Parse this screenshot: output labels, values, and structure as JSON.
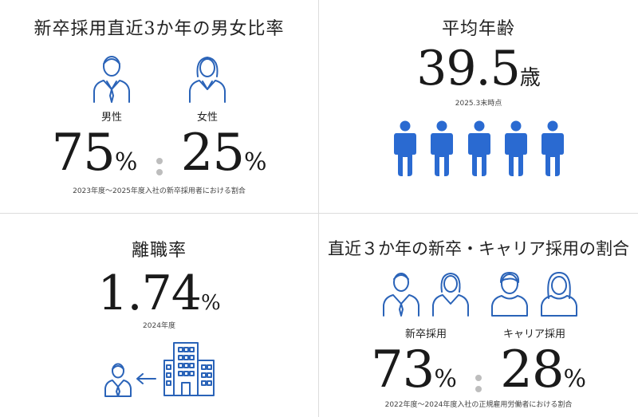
{
  "gender": {
    "title": "新卒採用直近3か年の男女比率",
    "male_label": "男性",
    "female_label": "女性",
    "male_value": "75",
    "female_value": "25",
    "unit": "%",
    "note": "2023年度〜2025年度入社の新卒採用者における割合"
  },
  "age": {
    "title": "平均年齢",
    "value": "39.5",
    "unit": "歳",
    "note": "2025.3末時点"
  },
  "turnover": {
    "title": "離職率",
    "value": "1.74",
    "unit": "%",
    "note": "2024年度"
  },
  "ratio": {
    "title": "直近３か年の新卒・キャリア採用の割合",
    "new_grad_label": "新卒採用",
    "career_label": "キャリア採用",
    "new_grad_value": "73",
    "career_value": "28",
    "unit": "%",
    "note": "2022年度〜2024年度入社の正規雇用労働者における割合"
  },
  "colors": {
    "accent": "#2a6ad1",
    "divider": "#dcdcdc",
    "dot": "#bdbdbd"
  },
  "icons": [
    "male-person-icon",
    "female-person-icon",
    "standing-person-icon",
    "businessman-icon",
    "arrow-left-icon",
    "office-building-icon",
    "man-suit-icon",
    "woman-suit-icon",
    "career-man-icon",
    "career-woman-icon"
  ]
}
